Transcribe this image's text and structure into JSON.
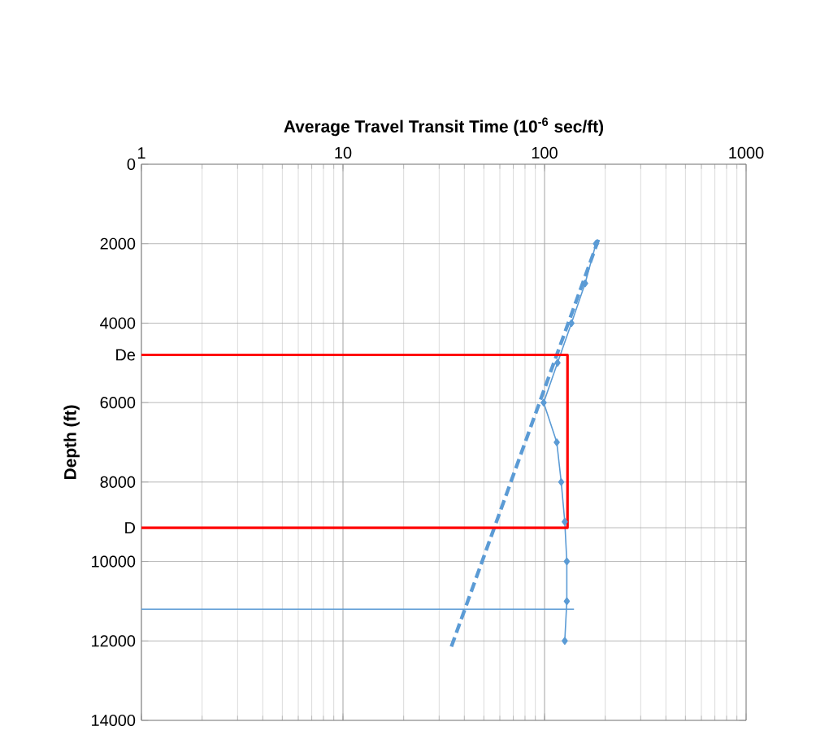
{
  "chart_data": {
    "type": "line",
    "xlabel": "Average Travel Transit Time (10$^{-6}$ sec/ft)",
    "ylabel": "Depth (ft)",
    "log": "x",
    "xlim": [
      1,
      1000
    ],
    "xticks": [
      1,
      10,
      100,
      1000
    ],
    "ylim": [
      14000,
      0
    ],
    "yticks": [
      0,
      2000,
      4000,
      {
        "value": 4800,
        "label": "De"
      },
      6000,
      8000,
      {
        "value": 9150,
        "label": "D"
      },
      10000,
      12000,
      14000
    ],
    "grid": true,
    "series": [
      {
        "color": "#5b9bd5",
        "marker": "diamond",
        "line_style": "solid",
        "x": [
          180,
          159,
          136,
          116,
          99,
          115,
          121,
          126,
          129,
          129,
          126
        ],
        "values": [
          2000,
          3000,
          4000,
          5000,
          6000,
          7000,
          8000,
          9000,
          10000,
          11000,
          12000
        ]
      },
      {
        "color": "#5b9bd5",
        "marker": "none",
        "line_style": "dashed",
        "x": [
          185,
          34
        ],
        "values": [
          1900,
          12230
        ]
      },
      {
        "color": "#5b9bd5",
        "marker": "none",
        "line_style": "solid",
        "x": [
          1,
          140
        ],
        "values": [
          11200,
          11200
        ]
      },
      {
        "color": "#ff0000",
        "marker": "none",
        "line_style": "solid",
        "x": [
          1,
          130,
          130,
          1
        ],
        "values": [
          9150,
          9150,
          4800,
          4800
        ]
      }
    ]
  }
}
